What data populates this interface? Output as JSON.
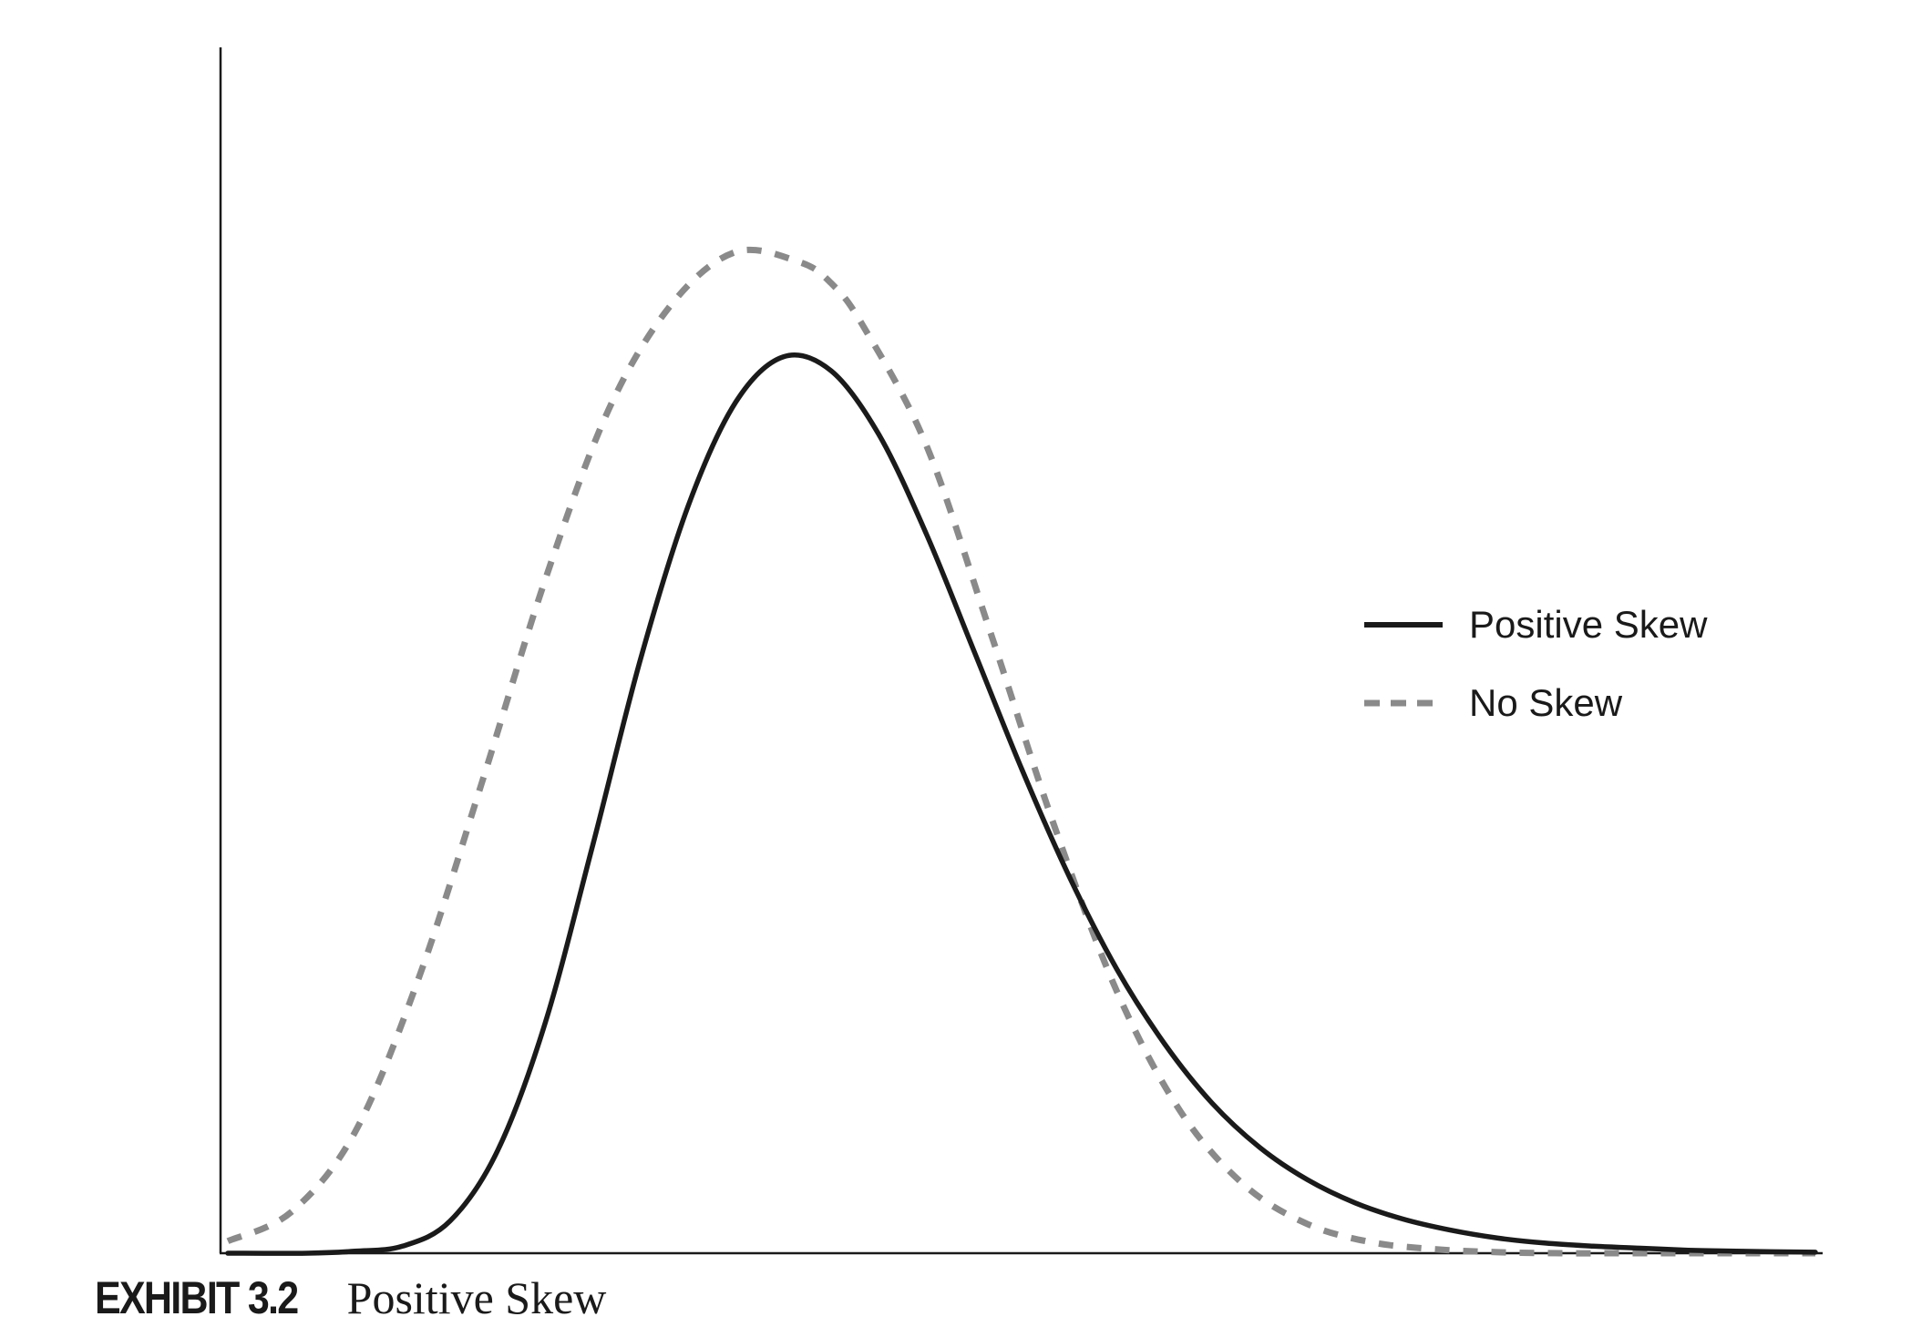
{
  "caption": {
    "exhibit": "EXHIBIT 3.2",
    "title": "Positive Skew"
  },
  "chart_data": {
    "type": "line",
    "title": "",
    "xlabel": "",
    "ylabel": "",
    "xlim": [
      0,
      10
    ],
    "ylim": [
      0,
      1
    ],
    "grid": false,
    "legend_position": "right",
    "series": [
      {
        "name": "Positive Skew",
        "style": "solid",
        "color": "#1a1a1a",
        "x": [
          0,
          0.5,
          0.8,
          1.1,
          1.4,
          1.7,
          2.0,
          2.3,
          2.6,
          2.9,
          3.2,
          3.5,
          3.8,
          4.1,
          4.4,
          4.7,
          5.0,
          5.3,
          5.6,
          5.9,
          6.2,
          6.5,
          6.8,
          7.1,
          7.4,
          7.7,
          8.0,
          8.3,
          8.6,
          8.9,
          9.2,
          9.5,
          10.0
        ],
        "y": [
          0.0,
          0.0,
          0.002,
          0.007,
          0.032,
          0.102,
          0.229,
          0.406,
          0.59,
          0.742,
          0.845,
          0.89,
          0.876,
          0.813,
          0.714,
          0.598,
          0.481,
          0.374,
          0.282,
          0.208,
          0.149,
          0.105,
          0.073,
          0.05,
          0.034,
          0.023,
          0.015,
          0.01,
          0.007,
          0.005,
          0.003,
          0.002,
          0.001
        ]
      },
      {
        "name": "No Skew",
        "style": "dashed",
        "color": "#8a8a8a",
        "x": [
          0,
          0.4,
          0.8,
          1.2,
          1.6,
          2.0,
          2.4,
          2.8,
          3.2,
          3.6,
          3.8,
          4.0,
          4.4,
          4.8,
          5.2,
          5.6,
          6.0,
          6.4,
          6.8,
          7.2,
          7.6,
          8.0,
          8.4,
          8.8,
          9.2,
          9.6,
          10.0
        ],
        "y": [
          0.012,
          0.041,
          0.12,
          0.272,
          0.467,
          0.669,
          0.838,
          0.943,
          0.994,
          0.984,
          0.963,
          0.921,
          0.802,
          0.618,
          0.427,
          0.26,
          0.141,
          0.068,
          0.029,
          0.011,
          0.004,
          0.001,
          0.0,
          0.0,
          0.0,
          0.0,
          0.0
        ]
      }
    ]
  }
}
